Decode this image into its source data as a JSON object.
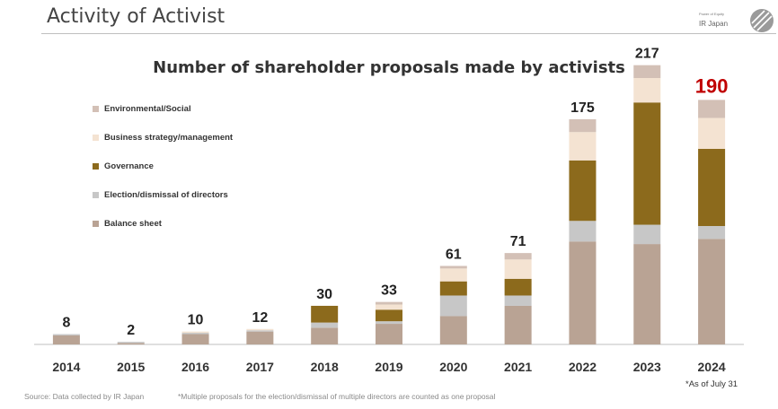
{
  "header": {
    "title": "Activity of Activist",
    "brand_tagline": "Power of Equity",
    "brand_name": "IR Japan"
  },
  "chart_data": {
    "type": "bar",
    "stacked": true,
    "title": "Number of shareholder proposals made by activists",
    "categories": [
      "2014",
      "2015",
      "2016",
      "2017",
      "2018",
      "2019",
      "2020",
      "2021",
      "2022",
      "2023",
      "2024"
    ],
    "totals": [
      8,
      2,
      10,
      12,
      30,
      33,
      61,
      71,
      175,
      217,
      190
    ],
    "highlight_index": 10,
    "highlight_color": "#c00000",
    "series": [
      {
        "name": "Balance sheet",
        "color": "#b9a394",
        "values": [
          7,
          1,
          8,
          10,
          13,
          16,
          22,
          30,
          80,
          78,
          82
        ]
      },
      {
        "name": "Election/dismissal of directors",
        "color": "#c7c7c7",
        "values": [
          1,
          1,
          1,
          1,
          4,
          2,
          16,
          8,
          16,
          15,
          10
        ]
      },
      {
        "name": "Governance",
        "color": "#8c6a1c",
        "values": [
          0,
          0,
          0,
          0,
          13,
          9,
          11,
          13,
          47,
          95,
          60
        ]
      },
      {
        "name": "Business strategy/management",
        "color": "#f4e3d2",
        "values": [
          0,
          0,
          1,
          1,
          0,
          4,
          10,
          15,
          22,
          19,
          24
        ]
      },
      {
        "name": "Environmental/Social",
        "color": "#d3c0b6",
        "values": [
          0,
          0,
          0,
          0,
          0,
          2,
          2,
          5,
          10,
          10,
          14
        ]
      }
    ],
    "ylim": [
      0,
      230
    ],
    "grid": false,
    "legend_position": "top-left"
  },
  "legend_order": [
    4,
    3,
    2,
    1,
    0
  ],
  "footnotes": {
    "source": "Source: Data collected by IR Japan",
    "multi": "*Multiple proposals for the election/dismissal of multiple directors are counted as one proposal",
    "as_of": "*As of July 31"
  }
}
